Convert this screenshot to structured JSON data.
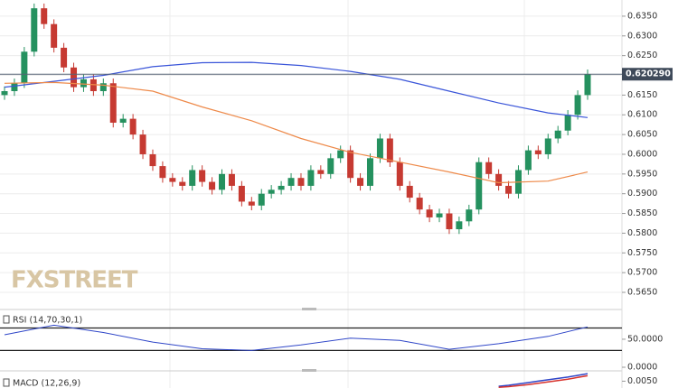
{
  "chart_data": {
    "type": "candlestick",
    "ylim": [
      0.5618,
      0.6391
    ],
    "yticks": [
      {
        "value": 0.565,
        "label": "0.5650"
      },
      {
        "value": 0.57,
        "label": "0.5700"
      },
      {
        "value": 0.575,
        "label": "0.5750"
      },
      {
        "value": 0.58,
        "label": "0.5800"
      },
      {
        "value": 0.585,
        "label": "0.5850"
      },
      {
        "value": 0.59,
        "label": "0.5900"
      },
      {
        "value": 0.595,
        "label": "0.5950"
      },
      {
        "value": 0.6,
        "label": "0.6000"
      },
      {
        "value": 0.605,
        "label": "0.6050"
      },
      {
        "value": 0.61,
        "label": "0.6100"
      },
      {
        "value": 0.615,
        "label": "0.6150"
      },
      {
        "value": 0.62,
        "label": "0.6200"
      },
      {
        "value": 0.625,
        "label": "0.6250"
      },
      {
        "value": 0.63,
        "label": "0.6300"
      },
      {
        "value": 0.635,
        "label": "0.6350"
      }
    ],
    "grid": true,
    "up_color": "#25915f",
    "down_color": "#c63a32",
    "last_price": {
      "value": 0.62029,
      "label": "0.620290"
    },
    "watermark": "FXSTREET",
    "open": [
      0.615,
      0.616,
      0.618,
      0.626,
      0.637,
      0.633,
      0.627,
      0.622,
      0.617,
      0.619,
      0.616,
      0.618,
      0.608,
      0.609,
      0.605,
      0.6,
      0.597,
      0.594,
      0.593,
      0.592,
      0.596,
      0.593,
      0.591,
      0.595,
      0.592,
      0.588,
      0.587,
      0.59,
      0.591,
      0.592,
      0.594,
      0.592,
      0.596,
      0.595,
      0.599,
      0.601,
      0.594,
      0.592,
      0.599,
      0.604,
      0.598,
      0.592,
      0.589,
      0.586,
      0.584,
      0.585,
      0.581,
      0.583,
      0.586,
      0.598,
      0.595,
      0.592,
      0.59,
      0.596,
      0.601,
      0.6,
      0.604,
      0.606,
      0.61,
      0.615
    ],
    "high": [
      0.6172,
      0.6192,
      0.6272,
      0.6382,
      0.6382,
      0.6342,
      0.6282,
      0.6232,
      0.6202,
      0.6202,
      0.6192,
      0.6192,
      0.6102,
      0.6102,
      0.6062,
      0.6012,
      0.5982,
      0.5952,
      0.5942,
      0.5972,
      0.5972,
      0.5942,
      0.5962,
      0.5962,
      0.5932,
      0.5892,
      0.5912,
      0.5922,
      0.5932,
      0.5952,
      0.5952,
      0.5972,
      0.5972,
      0.6002,
      0.6022,
      0.6022,
      0.5952,
      0.6002,
      0.6052,
      0.6052,
      0.5992,
      0.5932,
      0.5902,
      0.5872,
      0.5862,
      0.5862,
      0.5842,
      0.5872,
      0.5992,
      0.5992,
      0.5962,
      0.5932,
      0.5972,
      0.6022,
      0.6022,
      0.6052,
      0.6072,
      0.6112,
      0.6162,
      0.6215
    ],
    "low": [
      0.6138,
      0.6148,
      0.6168,
      0.6248,
      0.6318,
      0.6258,
      0.6208,
      0.6158,
      0.6158,
      0.6148,
      0.6148,
      0.6068,
      0.6068,
      0.6038,
      0.5988,
      0.5958,
      0.5928,
      0.5918,
      0.5908,
      0.5908,
      0.5918,
      0.5898,
      0.5898,
      0.5908,
      0.5868,
      0.5858,
      0.5858,
      0.5888,
      0.5898,
      0.5908,
      0.5908,
      0.5908,
      0.5938,
      0.5938,
      0.5978,
      0.5928,
      0.5908,
      0.5908,
      0.5978,
      0.5968,
      0.5908,
      0.5878,
      0.5848,
      0.5828,
      0.5828,
      0.5798,
      0.5798,
      0.5818,
      0.5848,
      0.5938,
      0.5908,
      0.5888,
      0.5888,
      0.5948,
      0.5988,
      0.5988,
      0.6028,
      0.6048,
      0.6088,
      0.6138
    ],
    "close": [
      0.616,
      0.618,
      0.626,
      0.637,
      0.633,
      0.627,
      0.622,
      0.617,
      0.619,
      0.616,
      0.618,
      0.608,
      0.609,
      0.605,
      0.6,
      0.597,
      0.594,
      0.593,
      0.592,
      0.596,
      0.593,
      0.591,
      0.595,
      0.592,
      0.588,
      0.587,
      0.59,
      0.591,
      0.592,
      0.594,
      0.592,
      0.596,
      0.595,
      0.599,
      0.601,
      0.594,
      0.592,
      0.599,
      0.604,
      0.598,
      0.592,
      0.589,
      0.586,
      0.584,
      0.585,
      0.581,
      0.583,
      0.586,
      0.598,
      0.595,
      0.592,
      0.59,
      0.596,
      0.601,
      0.6,
      0.604,
      0.606,
      0.61,
      0.615,
      0.6203
    ],
    "series": [
      {
        "color": "#3a55d9",
        "x": [
          0,
          5,
          10,
          15,
          20,
          25,
          30,
          35,
          40,
          45,
          50,
          55,
          59
        ],
        "values": [
          0.617,
          0.6185,
          0.62,
          0.6222,
          0.6232,
          0.6233,
          0.6225,
          0.621,
          0.619,
          0.616,
          0.613,
          0.6105,
          0.6093
        ]
      },
      {
        "color": "#ee8a4a",
        "x": [
          0,
          5,
          10,
          15,
          20,
          25,
          30,
          35,
          40,
          45,
          50,
          55,
          59
        ],
        "values": [
          0.618,
          0.6182,
          0.6175,
          0.616,
          0.612,
          0.6085,
          0.604,
          0.6005,
          0.598,
          0.5955,
          0.5928,
          0.5932,
          0.5955
        ]
      }
    ],
    "rsi": {
      "title": "RSI (14,70,30,1)",
      "ylim": [
        0,
        95
      ],
      "yticks": [
        {
          "value": 0,
          "label": "0.0000"
        },
        {
          "value": 50,
          "label": "50.0000"
        }
      ],
      "levels": [
        70,
        30
      ],
      "color": "#2f46c8",
      "x": [
        0,
        5,
        10,
        15,
        20,
        25,
        30,
        35,
        40,
        45,
        50,
        55,
        59
      ],
      "values": [
        58,
        75,
        62,
        45,
        33,
        30,
        40,
        52,
        48,
        32,
        42,
        55,
        72
      ]
    },
    "macd": {
      "title": "MACD (12,26,9)",
      "ylim": [
        0.003,
        0.0075
      ],
      "yticks": [
        {
          "value": 0.005,
          "label": "0.0050"
        }
      ],
      "series": [
        {
          "color": "#2f46c8",
          "x": [
            50,
            51,
            52,
            53,
            54,
            55,
            56,
            57,
            58,
            59
          ],
          "values": [
            0.0035,
            0.0038,
            0.0042,
            0.0046,
            0.005,
            0.0054,
            0.0058,
            0.0062,
            0.0067,
            0.0072
          ]
        },
        {
          "color": "#d8322c",
          "x": [
            50,
            51,
            52,
            53,
            54,
            55,
            56,
            57,
            58,
            59
          ],
          "values": [
            0.0032,
            0.0034,
            0.0037,
            0.004,
            0.0044,
            0.0048,
            0.0052,
            0.0056,
            0.0061,
            0.0066
          ]
        }
      ]
    }
  }
}
